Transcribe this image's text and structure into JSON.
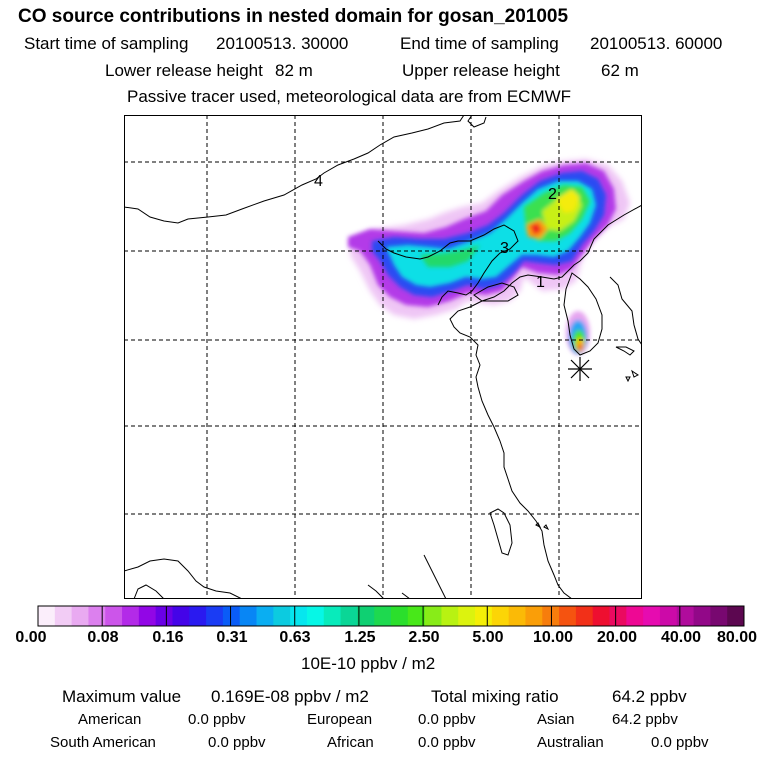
{
  "header": {
    "title": "CO  source contributions in nested domain for gosan_201005",
    "start_label": "Start time of sampling",
    "start_value": "20100513. 30000",
    "end_label": "End time of sampling",
    "end_value": "20100513. 60000",
    "lower_label": "Lower release height",
    "lower_value": "82 m",
    "upper_label": "Upper release height",
    "upper_value": "62 m",
    "note": "Passive tracer used, meteorological data are from ECMWF"
  },
  "map": {
    "markers": [
      "1",
      "2",
      "3",
      "4"
    ],
    "receptor_symbol": "star"
  },
  "colorbar": {
    "tick_labels": [
      "0.00",
      "0.08",
      "0.16",
      "0.31",
      "0.63",
      "1.25",
      "2.50",
      "5.00",
      "10.00",
      "20.00",
      "40.00",
      "80.00"
    ],
    "units": "10E-10 ppbv / m2",
    "colors": [
      "#fbeefb",
      "#f2ccf5",
      "#e9aaf1",
      "#dc80ee",
      "#cc55ea",
      "#b32ae8",
      "#9206e6",
      "#6a00e6",
      "#4404e8",
      "#2a1af0",
      "#1a3cf4",
      "#0a5cf7",
      "#0886f5",
      "#0aaef2",
      "#0ccbe0",
      "#06e6ee",
      "#06f7e6",
      "#08ebbb",
      "#0ad696",
      "#0fd072",
      "#1ed94f",
      "#2bdf2c",
      "#48e819",
      "#88ec18",
      "#b8f212",
      "#dcf30e",
      "#f5ef07",
      "#fcd506",
      "#fbba06",
      "#fa9e08",
      "#f77d0c",
      "#f55310",
      "#f23018",
      "#ee0f30",
      "#ea0a60",
      "#ee0894",
      "#e60bb0",
      "#cc0aa8",
      "#b00c9c",
      "#920888",
      "#780870",
      "#5c0750"
    ]
  },
  "footer": {
    "max_label": "Maximum value",
    "max_value": "0.169E-08 ppbv / m2",
    "total_label": "Total mixing ratio",
    "total_value": "64.2 ppbv",
    "sources": [
      {
        "name": "American",
        "value": "0.0 ppbv"
      },
      {
        "name": "European",
        "value": "0.0 ppbv"
      },
      {
        "name": "Asian",
        "value": "64.2 ppbv"
      },
      {
        "name": "South American",
        "value": "0.0 ppbv"
      },
      {
        "name": "African",
        "value": "0.0 ppbv"
      },
      {
        "name": "Australian",
        "value": "0.0 ppbv"
      }
    ]
  }
}
